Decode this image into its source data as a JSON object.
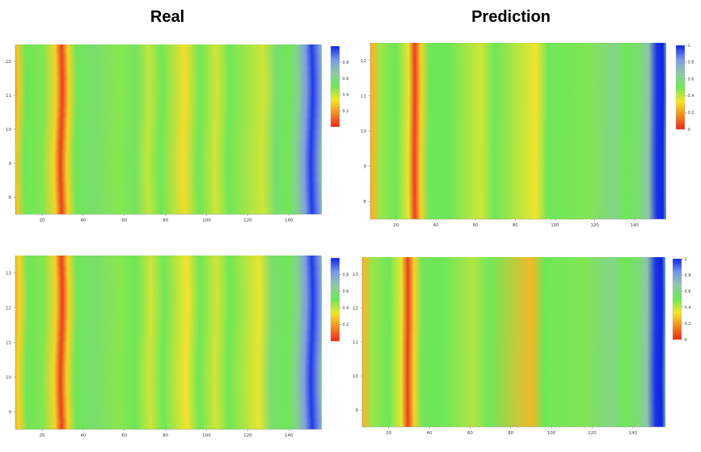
{
  "titles": {
    "left": "Real",
    "right": "Prediction"
  },
  "colorscale": [
    "#e8291b",
    "#f08a22",
    "#f5e52b",
    "#6fe657",
    "#8fc9a5",
    "#7b98e6",
    "#0d24e6"
  ],
  "chart_data": [
    {
      "type": "heatmap",
      "name": "real-top",
      "column": "Real",
      "xticks": [
        20,
        40,
        60,
        80,
        100,
        120,
        140
      ],
      "xtick_labels": [
        "20",
        "40",
        "60",
        "80",
        "100",
        "120",
        "140"
      ],
      "yticks": [
        8,
        9,
        10,
        11,
        12
      ],
      "ytick_labels": [
        "8",
        "9",
        "10",
        "11",
        "12"
      ],
      "xlim": [
        7,
        156
      ],
      "ylim": [
        7.5,
        12.5
      ],
      "colorbar_ticks": [
        "0.2",
        "0.4",
        "0.6",
        "0.8"
      ],
      "wobble": 1.2,
      "stripes": [
        {
          "x": 7,
          "v": 0.05
        },
        {
          "x": 10,
          "v": 0.28
        },
        {
          "x": 14,
          "v": 0.5
        },
        {
          "x": 22,
          "v": 0.48
        },
        {
          "x": 28,
          "v": 0.3
        },
        {
          "x": 31,
          "v": 0.04
        },
        {
          "x": 34,
          "v": 0.3
        },
        {
          "x": 38,
          "v": 0.5
        },
        {
          "x": 46,
          "v": 0.55
        },
        {
          "x": 58,
          "v": 0.47
        },
        {
          "x": 66,
          "v": 0.52
        },
        {
          "x": 72,
          "v": 0.4
        },
        {
          "x": 78,
          "v": 0.5
        },
        {
          "x": 89,
          "v": 0.32
        },
        {
          "x": 96,
          "v": 0.5
        },
        {
          "x": 104,
          "v": 0.38
        },
        {
          "x": 110,
          "v": 0.5
        },
        {
          "x": 126,
          "v": 0.38
        },
        {
          "x": 132,
          "v": 0.55
        },
        {
          "x": 138,
          "v": 0.5
        },
        {
          "x": 142,
          "v": 0.62
        },
        {
          "x": 146,
          "v": 0.82
        },
        {
          "x": 149,
          "v": 0.97
        },
        {
          "x": 152,
          "v": 0.85
        },
        {
          "x": 154,
          "v": 0.62
        },
        {
          "x": 156,
          "v": 0.58
        }
      ]
    },
    {
      "type": "heatmap",
      "name": "prediction-top",
      "column": "Prediction",
      "xticks": [
        20,
        40,
        60,
        80,
        100,
        120,
        140
      ],
      "xtick_labels": [
        "20",
        "40",
        "60",
        "80",
        "100",
        "120",
        "140"
      ],
      "yticks": [
        8,
        9,
        10,
        11,
        12
      ],
      "ytick_labels": [
        "8",
        "9",
        "10",
        "11",
        "12"
      ],
      "xlim": [
        7,
        156
      ],
      "ylim": [
        7.5,
        12.5
      ],
      "colorbar_ticks": [
        "0",
        "0.2",
        "0.4",
        "0.6",
        "0.8",
        "1"
      ],
      "wobble": 0.3,
      "stripes": [
        {
          "x": 7,
          "v": 0.22
        },
        {
          "x": 11,
          "v": 0.25
        },
        {
          "x": 14,
          "v": 0.45
        },
        {
          "x": 22,
          "v": 0.5
        },
        {
          "x": 28,
          "v": 0.35
        },
        {
          "x": 31,
          "v": 0.04
        },
        {
          "x": 34,
          "v": 0.3
        },
        {
          "x": 38,
          "v": 0.5
        },
        {
          "x": 48,
          "v": 0.5
        },
        {
          "x": 63,
          "v": 0.38
        },
        {
          "x": 70,
          "v": 0.5
        },
        {
          "x": 90,
          "v": 0.34
        },
        {
          "x": 96,
          "v": 0.5
        },
        {
          "x": 115,
          "v": 0.48
        },
        {
          "x": 128,
          "v": 0.6
        },
        {
          "x": 134,
          "v": 0.5
        },
        {
          "x": 140,
          "v": 0.55
        },
        {
          "x": 145,
          "v": 0.68
        },
        {
          "x": 149,
          "v": 0.98
        },
        {
          "x": 152,
          "v": 1.0
        },
        {
          "x": 154,
          "v": 0.6
        },
        {
          "x": 156,
          "v": 0.58
        }
      ]
    },
    {
      "type": "heatmap",
      "name": "real-bottom",
      "column": "Real",
      "xticks": [
        20,
        40,
        60,
        80,
        100,
        120,
        140
      ],
      "xtick_labels": [
        "20",
        "40",
        "60",
        "80",
        "100",
        "120",
        "140"
      ],
      "yticks": [
        9,
        10,
        11,
        12,
        13
      ],
      "ytick_labels": [
        "9",
        "10",
        "11",
        "12",
        "13"
      ],
      "xlim": [
        7,
        156
      ],
      "ylim": [
        8.5,
        13.5
      ],
      "colorbar_ticks": [
        "0.2",
        "0.4",
        "0.6",
        "0.8"
      ],
      "wobble": 1.2,
      "stripes": [
        {
          "x": 7,
          "v": 0.2
        },
        {
          "x": 11,
          "v": 0.3
        },
        {
          "x": 15,
          "v": 0.5
        },
        {
          "x": 22,
          "v": 0.48
        },
        {
          "x": 28,
          "v": 0.3
        },
        {
          "x": 31,
          "v": 0.04
        },
        {
          "x": 34,
          "v": 0.3
        },
        {
          "x": 38,
          "v": 0.5
        },
        {
          "x": 46,
          "v": 0.55
        },
        {
          "x": 58,
          "v": 0.47
        },
        {
          "x": 66,
          "v": 0.5
        },
        {
          "x": 73,
          "v": 0.38
        },
        {
          "x": 79,
          "v": 0.5
        },
        {
          "x": 90,
          "v": 0.33
        },
        {
          "x": 96,
          "v": 0.5
        },
        {
          "x": 104,
          "v": 0.38
        },
        {
          "x": 110,
          "v": 0.5
        },
        {
          "x": 124,
          "v": 0.35
        },
        {
          "x": 130,
          "v": 0.55
        },
        {
          "x": 138,
          "v": 0.5
        },
        {
          "x": 142,
          "v": 0.62
        },
        {
          "x": 146,
          "v": 0.82
        },
        {
          "x": 149,
          "v": 0.97
        },
        {
          "x": 152,
          "v": 0.85
        },
        {
          "x": 154,
          "v": 0.62
        },
        {
          "x": 156,
          "v": 0.58
        }
      ]
    },
    {
      "type": "heatmap",
      "name": "prediction-bottom",
      "column": "Prediction",
      "xticks": [
        20,
        40,
        60,
        80,
        100,
        120,
        140
      ],
      "xtick_labels": [
        "20",
        "40",
        "60",
        "80",
        "100",
        "120",
        "140"
      ],
      "yticks": [
        9,
        10,
        11,
        12,
        13
      ],
      "ytick_labels": [
        "9",
        "10",
        "11",
        "12",
        "13"
      ],
      "xlim": [
        7,
        156
      ],
      "ylim": [
        8.5,
        13.5
      ],
      "colorbar_ticks": [
        "0",
        "0.2",
        "0.4",
        "0.6",
        "0.8",
        "1"
      ],
      "wobble": 0.3,
      "stripes": [
        {
          "x": 7,
          "v": 0.2
        },
        {
          "x": 10,
          "v": 0.25
        },
        {
          "x": 14,
          "v": 0.45
        },
        {
          "x": 22,
          "v": 0.5
        },
        {
          "x": 28,
          "v": 0.35
        },
        {
          "x": 31,
          "v": 0.04
        },
        {
          "x": 34,
          "v": 0.3
        },
        {
          "x": 38,
          "v": 0.5
        },
        {
          "x": 48,
          "v": 0.5
        },
        {
          "x": 62,
          "v": 0.42
        },
        {
          "x": 70,
          "v": 0.5
        },
        {
          "x": 90,
          "v": 0.25
        },
        {
          "x": 96,
          "v": 0.5
        },
        {
          "x": 115,
          "v": 0.48
        },
        {
          "x": 128,
          "v": 0.6
        },
        {
          "x": 134,
          "v": 0.5
        },
        {
          "x": 140,
          "v": 0.55
        },
        {
          "x": 145,
          "v": 0.68
        },
        {
          "x": 149,
          "v": 0.98
        },
        {
          "x": 152,
          "v": 1.0
        },
        {
          "x": 154,
          "v": 0.6
        },
        {
          "x": 156,
          "v": 0.58
        }
      ]
    }
  ]
}
